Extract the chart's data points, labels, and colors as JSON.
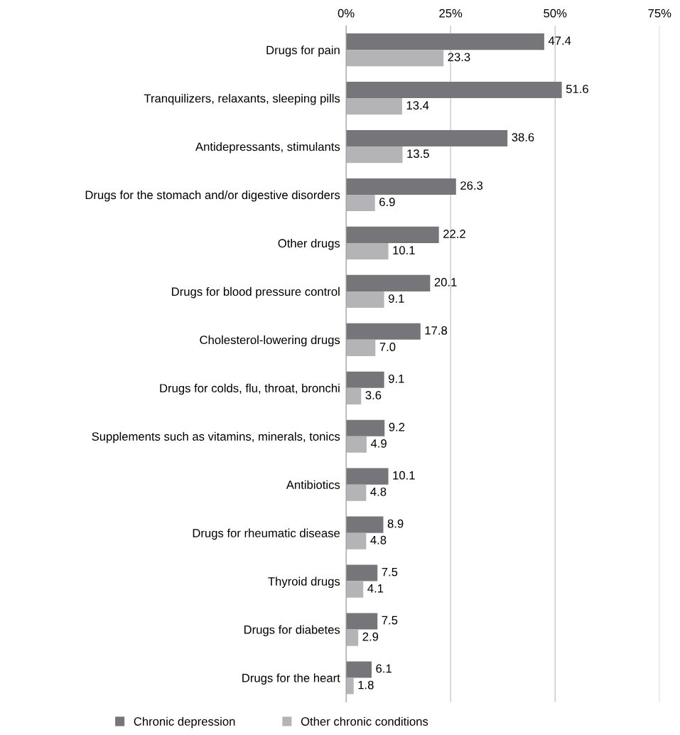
{
  "chart_data": {
    "type": "bar",
    "orientation": "horizontal",
    "categories": [
      "Drugs for pain",
      "Tranquilizers, relaxants, sleeping pills",
      "Antidepressants, stimulants",
      "Drugs for the stomach and/or digestive disorders",
      "Other drugs",
      "Drugs for blood pressure control",
      "Cholesterol-lowering drugs",
      "Drugs for colds, flu, throat, bronchi",
      "Supplements such as vitamins, minerals, tonics",
      "Antibiotics",
      "Drugs for rheumatic disease",
      "Thyroid drugs",
      "Drugs for diabetes",
      "Drugs for the heart"
    ],
    "series": [
      {
        "name": "Chronic depression",
        "color": "#76767a",
        "values": [
          47.4,
          51.6,
          38.6,
          26.3,
          22.2,
          20.1,
          17.8,
          9.1,
          9.2,
          10.1,
          8.9,
          7.5,
          7.5,
          6.1
        ],
        "value_labels": [
          "47.4",
          "51.6",
          "38.6",
          "26.3",
          "22.2",
          "20.1",
          "17.8",
          "9.1",
          "9.2",
          "10.1",
          "8.9",
          "7.5",
          "7.5",
          "6.1"
        ]
      },
      {
        "name": "Other chronic conditions",
        "color": "#b4b4b6",
        "values": [
          23.3,
          13.4,
          13.5,
          6.9,
          10.1,
          9.1,
          7.0,
          3.6,
          4.9,
          4.8,
          4.8,
          4.1,
          2.9,
          1.8
        ],
        "value_labels": [
          "23.3",
          "13.4",
          "13.5",
          "6.9",
          "10.1",
          "9.1",
          "7.0",
          "3.6",
          "4.9",
          "4.8",
          "4.8",
          "4.1",
          "2.9",
          "1.8"
        ]
      }
    ],
    "xlim": [
      0,
      75
    ],
    "xticks": [
      {
        "value": 0,
        "label": "0%"
      },
      {
        "value": 25,
        "label": "25%"
      },
      {
        "value": 50,
        "label": "50%"
      },
      {
        "value": 75,
        "label": "75%"
      }
    ],
    "grid": "x",
    "legend": "bottom"
  }
}
